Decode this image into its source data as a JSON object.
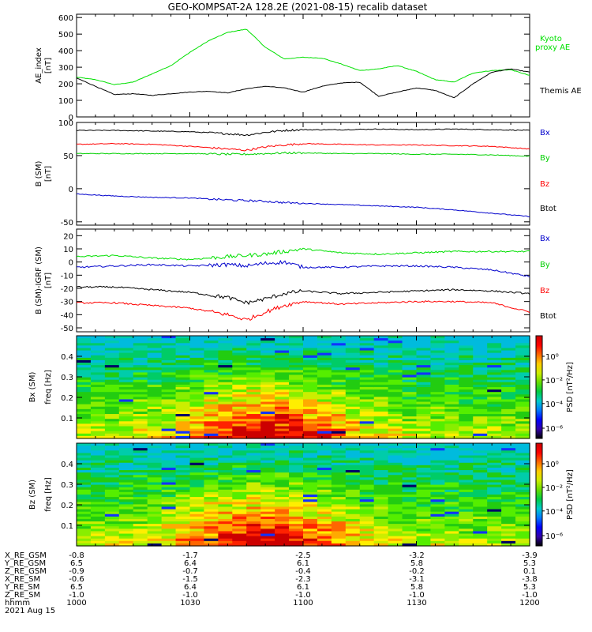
{
  "title": "GEO-KOMPSAT-2A 128.2E (2021-08-15) recalib dataset",
  "chart_data": [
    {
      "type": "line",
      "panel": "ae",
      "ylabel": "AE_index",
      "yunit": "[nT]",
      "ylim": [
        0,
        620
      ],
      "yticks": [
        0,
        100,
        200,
        300,
        400,
        500,
        600
      ],
      "x": [
        0,
        5,
        10,
        15,
        20,
        25,
        30,
        35,
        40,
        45,
        50,
        55,
        60,
        65,
        70,
        75,
        80,
        85,
        90,
        95,
        100,
        105,
        110,
        115,
        120
      ],
      "series": [
        {
          "name": "Kyoto proxy AE",
          "color": "#00e000",
          "values": [
            240,
            225,
            195,
            210,
            260,
            310,
            390,
            460,
            510,
            530,
            420,
            350,
            360,
            355,
            320,
            280,
            290,
            310,
            275,
            225,
            210,
            265,
            280,
            285,
            250
          ]
        },
        {
          "name": "Themis AE",
          "color": "#000000",
          "values": [
            235,
            185,
            135,
            140,
            130,
            140,
            150,
            155,
            145,
            170,
            185,
            175,
            150,
            185,
            205,
            210,
            125,
            150,
            175,
            160,
            115,
            200,
            270,
            290,
            270
          ]
        }
      ]
    },
    {
      "type": "line",
      "panel": "b_sm",
      "ylabel": "B (SM)",
      "yunit": "[nT]",
      "ylim": [
        -55,
        100
      ],
      "yticks": [
        -50,
        0,
        50,
        100
      ],
      "x": [
        0,
        10,
        20,
        30,
        40,
        45,
        50,
        55,
        60,
        70,
        80,
        90,
        100,
        110,
        120
      ],
      "series": [
        {
          "name": "Bx",
          "color": "#000000",
          "values": [
            88,
            88,
            87,
            86,
            83,
            81,
            85,
            88,
            89,
            89,
            90,
            89,
            90,
            89,
            88
          ]
        },
        {
          "name": "By",
          "color": "#ff0000",
          "values": [
            67,
            68,
            67,
            64,
            60,
            58,
            63,
            66,
            68,
            67,
            66,
            66,
            65,
            64,
            60
          ]
        },
        {
          "name": "Bz",
          "color": "#00d000",
          "values": [
            53,
            53,
            53,
            53,
            52,
            52,
            53,
            54,
            54,
            53,
            53,
            52,
            52,
            51,
            49
          ]
        },
        {
          "name": "Btot",
          "color": "#0000cc",
          "values": [
            -8,
            -11,
            -13,
            -14,
            -17,
            -18,
            -19,
            -21,
            -22,
            -24,
            -26,
            -28,
            -32,
            -37,
            -42
          ]
        }
      ]
    },
    {
      "type": "line",
      "panel": "b_igrf",
      "ylabel": "B (SM)-IGRF (SM)",
      "yunit": "[nT]",
      "ylim": [
        -53,
        25
      ],
      "yticks": [
        -50,
        -40,
        -30,
        -20,
        -10,
        0,
        10,
        20
      ],
      "x": [
        0,
        10,
        20,
        30,
        40,
        45,
        50,
        55,
        60,
        70,
        80,
        90,
        100,
        110,
        120
      ],
      "series": [
        {
          "name": "Bx",
          "color": "#00e000",
          "values": [
            4,
            5,
            3,
            2,
            4,
            5,
            6,
            8,
            10,
            7,
            6,
            7,
            8,
            8,
            8
          ]
        },
        {
          "name": "By",
          "color": "#0000cc",
          "values": [
            -4,
            -3,
            -2,
            -3,
            -2,
            -3,
            -1,
            0,
            -4,
            -4,
            -3,
            -3,
            -4,
            -6,
            -11
          ]
        },
        {
          "name": "Bz",
          "color": "#000000",
          "values": [
            -19,
            -19,
            -21,
            -23,
            -27,
            -31,
            -28,
            -24,
            -22,
            -24,
            -23,
            -22,
            -21,
            -22,
            -24
          ]
        },
        {
          "name": "Btot",
          "color": "#ff0000",
          "values": [
            -31,
            -31,
            -33,
            -35,
            -40,
            -44,
            -38,
            -33,
            -30,
            -32,
            -31,
            -30,
            -30,
            -31,
            -38
          ]
        }
      ]
    },
    {
      "type": "heatmap",
      "panel": "bx_psd",
      "ylabel": "Bx (SM)",
      "ylabel2": "freq [Hz]",
      "ylim": [
        0,
        0.5
      ],
      "yticks": [
        0.1,
        0.2,
        0.3,
        0.4
      ],
      "colorbar_label": "PSD [nT²/Hz]",
      "colorbar_ticks": [
        "10⁰",
        "10⁻²",
        "10⁻⁴",
        "10⁻⁶"
      ]
    },
    {
      "type": "heatmap",
      "panel": "bz_psd",
      "ylabel": "Bz (SM)",
      "ylabel2": "freq [Hz]",
      "ylim": [
        0,
        0.5
      ],
      "yticks": [
        0.1,
        0.2,
        0.3,
        0.4
      ],
      "colorbar_label": "PSD [nT²/Hz]",
      "colorbar_ticks": [
        "10⁰",
        "10⁻²",
        "10⁻⁴",
        "10⁻⁶"
      ]
    }
  ],
  "ephemeris": {
    "labels": [
      "X_RE_GSM",
      "Y_RE_GSM",
      "Z_RE_GSM",
      "X_RE_SM",
      "Y_RE_SM",
      "Z_RE_SM",
      "hhmm"
    ],
    "columns": [
      [
        "-0.8",
        "6.5",
        "-0.9",
        "-0.6",
        "6.5",
        "-1.0",
        "1000"
      ],
      [
        "-1.7",
        "6.4",
        "-0.7",
        "-1.5",
        "6.4",
        "-1.0",
        "1030"
      ],
      [
        "-2.5",
        "6.1",
        "-0.4",
        "-2.3",
        "6.1",
        "-1.0",
        "1100"
      ],
      [
        "-3.2",
        "5.8",
        "-0.2",
        "-3.1",
        "5.8",
        "-1.0",
        "1130"
      ],
      [
        "-3.9",
        "5.3",
        "0.1",
        "-3.8",
        "5.3",
        "-1.0",
        "1200"
      ]
    ],
    "date": "2021 Aug 15"
  }
}
